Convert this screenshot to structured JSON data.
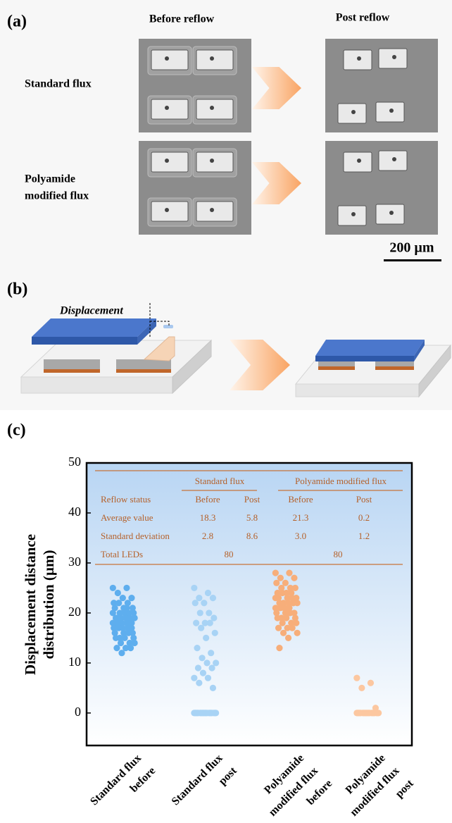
{
  "panel_a": {
    "label": "(a)",
    "column_headers": [
      "Before reflow",
      "Post reflow"
    ],
    "row_labels": [
      [
        "Standard flux"
      ],
      [
        "Polyamide",
        "modified flux"
      ]
    ],
    "scale_bar": "200 µm"
  },
  "panel_b": {
    "label": "(b)",
    "annotation": [
      "Displacement",
      "distance"
    ]
  },
  "chart_data": {
    "type": "strip",
    "panel_label": "(c)",
    "ylabel": [
      "Displacement distance",
      "distribution (µm)"
    ],
    "categories": [
      [
        "Standard flux",
        "before"
      ],
      [
        "Standard flux",
        "post"
      ],
      [
        "Polyamide",
        "modified flux",
        "before"
      ],
      [
        "Polyamide",
        "modified flux",
        "post"
      ]
    ],
    "series": [
      {
        "color": "#5eaeee",
        "values": [
          25,
          25,
          24,
          23,
          23,
          22,
          22,
          22,
          21,
          21,
          21,
          20,
          20,
          20,
          20,
          19,
          19,
          19,
          19,
          19,
          18,
          18,
          18,
          18,
          18,
          18,
          17,
          17,
          17,
          17,
          17,
          16,
          16,
          16,
          16,
          15,
          15,
          15,
          15,
          14,
          14,
          14,
          13,
          13,
          13,
          12,
          20,
          21,
          19,
          18
        ]
      },
      {
        "color": "#a8d3f5",
        "values": [
          25,
          24,
          23,
          23,
          22,
          22,
          20,
          20,
          19,
          18,
          18,
          18,
          17,
          16,
          15,
          13,
          12,
          11,
          10,
          10,
          9,
          9,
          8,
          7,
          7,
          6,
          5,
          0,
          0,
          0,
          0,
          0,
          0,
          0,
          0,
          0,
          0,
          0,
          0,
          0,
          0,
          0,
          0,
          0,
          0,
          0,
          0
        ]
      },
      {
        "color": "#f7ae7a",
        "values": [
          28,
          28,
          27,
          27,
          26,
          26,
          25,
          25,
          25,
          24,
          24,
          24,
          24,
          23,
          23,
          23,
          23,
          22,
          22,
          22,
          22,
          22,
          21,
          21,
          21,
          21,
          20,
          20,
          20,
          20,
          19,
          19,
          19,
          19,
          18,
          18,
          18,
          17,
          17,
          17,
          16,
          16,
          15,
          13,
          22,
          21,
          23,
          20
        ]
      },
      {
        "color": "#fcc7a0",
        "values": [
          7,
          6,
          5,
          1,
          0,
          0,
          0,
          0,
          0,
          0,
          0,
          0,
          0,
          0,
          0,
          0,
          0,
          0,
          0,
          0,
          0,
          0,
          0,
          0
        ]
      }
    ],
    "ylim": [
      -6.5,
      50
    ],
    "yticks": [
      0,
      10,
      20,
      30,
      40,
      50
    ],
    "table": {
      "group_headers": [
        "Standard flux",
        "Polyamide modified flux"
      ],
      "rows": [
        [
          "Reflow status",
          "Before",
          "Post",
          "Before",
          "Post"
        ],
        [
          "Average value",
          18.3,
          5.8,
          21.3,
          0.2
        ],
        [
          "Standard deviation",
          2.8,
          8.6,
          "3.0",
          1.2
        ],
        [
          "Total LEDs",
          80,
          80
        ]
      ]
    }
  }
}
